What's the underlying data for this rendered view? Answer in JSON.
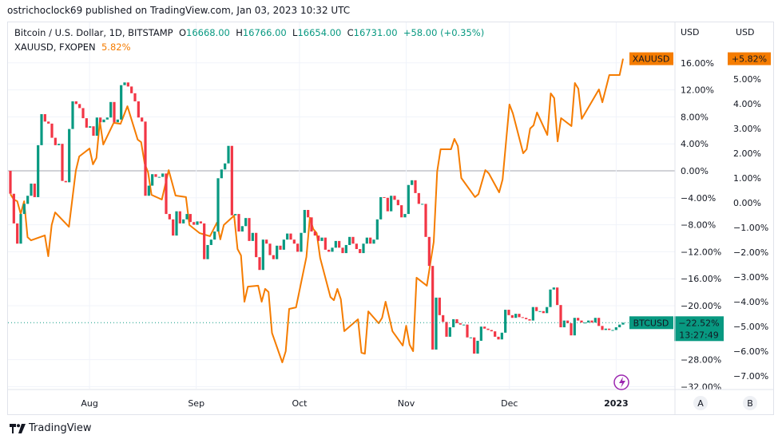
{
  "publisher_line": "ostrichoclock69 published on TradingView.com, Jan 03, 2023 10:32 UTC",
  "legend": {
    "main_symbol": "Bitcoin / U.S. Dollar, 1D, BITSTAMP",
    "o_label": "O",
    "o_value": "16668.00",
    "h_label": "H",
    "h_value": "16766.00",
    "l_label": "L",
    "l_value": "16654.00",
    "c_label": "C",
    "c_value": "16731.00",
    "change": "+58.00 (+0.35%)",
    "compare_symbol": "XAUUSD, FXOPEN",
    "compare_value": "5.82%"
  },
  "footer": {
    "brand": "TradingView",
    "icon": "tradingview-logo-icon"
  },
  "colors": {
    "up": "#089981",
    "down": "#f23645",
    "compare": "#f57c00",
    "btc_label": "#089981",
    "alert": "#9c27b0"
  },
  "chart_data": {
    "type": "candlestick+line",
    "x_range": [
      "2022-07-09",
      "2023-01-03"
    ],
    "x_ticks": [
      {
        "date": "2022-08-01",
        "label": "Aug"
      },
      {
        "date": "2022-09-01",
        "label": "Sep"
      },
      {
        "date": "2022-10-01",
        "label": "Oct"
      },
      {
        "date": "2022-11-01",
        "label": "Nov"
      },
      {
        "date": "2022-12-01",
        "label": "Dec"
      },
      {
        "date": "2023-01-01",
        "label": "2023",
        "bold": true
      }
    ],
    "axis_a": {
      "unit": "USD",
      "name": "A",
      "ticks": [
        16,
        12,
        8,
        4,
        0,
        -4,
        -8,
        -12,
        -16,
        -20,
        -28,
        -32
      ],
      "format": "%"
    },
    "axis_b": {
      "unit": "USD",
      "name": "B",
      "ticks": [
        5,
        4,
        3,
        2,
        1,
        0,
        -1,
        -2,
        -3,
        -4,
        -5,
        -6,
        -7
      ],
      "format": "%"
    },
    "grid": true,
    "series": [
      {
        "name": "BTCUSD",
        "type": "candlestick",
        "axis": "A",
        "first_open": 0,
        "closes": [
          -3.4,
          -7.8,
          -10.8,
          -6.4,
          -4.9,
          -3.7,
          -1.9,
          -3.9,
          3.8,
          8.4,
          7.3,
          7.0,
          4.9,
          3.8,
          4.0,
          -1.5,
          -1.7,
          6.2,
          10.3,
          9.9,
          9.3,
          7.8,
          6.4,
          6.6,
          5.2,
          7.9,
          7.2,
          7.6,
          7.9,
          10.2,
          7.2,
          7.6,
          12.7,
          13.1,
          12.5,
          11.5,
          10.3,
          7.9,
          7.3,
          -3.7,
          -2.2,
          -0.5,
          -0.9,
          -0.9,
          -0.4,
          -6.4,
          -7.2,
          -9.6,
          -6.0,
          -7.8,
          -7.2,
          -6.4,
          -7.6,
          -8.0,
          -7.5,
          -7.8,
          -13.1,
          -11.0,
          -10.2,
          -9.0,
          -1.1,
          0.2,
          1.1,
          3.7,
          -6.6,
          -6.4,
          -9.0,
          -8.2,
          -7.0,
          -10.4,
          -9.2,
          -12.8,
          -14.7,
          -10.2,
          -10.8,
          -12.5,
          -13.1,
          -11.1,
          -11.7,
          -10.2,
          -9.3,
          -10.2,
          -10.8,
          -12.0,
          -9.2,
          -5.8,
          -6.9,
          -9.0,
          -9.6,
          -10.4,
          -9.9,
          -11.7,
          -12.0,
          -11.4,
          -10.4,
          -11.4,
          -12.2,
          -11.0,
          -9.8,
          -10.8,
          -11.6,
          -12.2,
          -10.8,
          -9.9,
          -10.8,
          -10.2,
          -7.2,
          -3.9,
          -4.0,
          -6.0,
          -3.7,
          -4.3,
          -5.1,
          -6.9,
          -6.4,
          -2.1,
          -1.4,
          -3.3,
          -4.9,
          -4.9,
          -9.8,
          -14.1,
          -26.5,
          -18.8,
          -21.4,
          -22.4,
          -24.6,
          -23.2,
          -22.0,
          -22.6,
          -22.8,
          -22.8,
          -24.7,
          -24.7,
          -27.1,
          -25.2,
          -23.1,
          -23.4,
          -23.6,
          -23.8,
          -24.6,
          -25.0,
          -24.0,
          -20.6,
          -21.4,
          -21.8,
          -21.2,
          -21.7,
          -21.8,
          -22.0,
          -22.2,
          -20.2,
          -20.8,
          -20.8,
          -21.1,
          -20.2,
          -17.6,
          -17.3,
          -19.9,
          -23.2,
          -22.2,
          -22.6,
          -24.4,
          -21.8,
          -22.2,
          -22.5,
          -22.5,
          -22.2,
          -22.5,
          -21.8,
          -23.0,
          -23.6,
          -23.4,
          -23.6,
          -23.6,
          -23.2,
          -22.8,
          -22.52
        ],
        "last_label": "BTCUSD",
        "last_value": "−22.52%",
        "countdown": "13:27:49"
      },
      {
        "name": "XAUUSD",
        "type": "line",
        "axis": "B",
        "points": [
          [
            "2022-07-09",
            0.35
          ],
          [
            "2022-07-10",
            0.13
          ],
          [
            "2022-07-11",
            0.06
          ],
          [
            "2022-07-12",
            -0.45
          ],
          [
            "2022-07-13",
            0.06
          ],
          [
            "2022-07-14",
            -1.39
          ],
          [
            "2022-07-15",
            -1.52
          ],
          [
            "2022-07-19",
            -1.32
          ],
          [
            "2022-07-20",
            -2.16
          ],
          [
            "2022-07-21",
            -0.9
          ],
          [
            "2022-07-22",
            -0.39
          ],
          [
            "2022-07-26",
            -0.97
          ],
          [
            "2022-07-28",
            1.29
          ],
          [
            "2022-07-29",
            1.87
          ],
          [
            "2022-08-01",
            2.19
          ],
          [
            "2022-08-02",
            1.55
          ],
          [
            "2022-08-03",
            1.81
          ],
          [
            "2022-08-04",
            3.29
          ],
          [
            "2022-08-05",
            2.35
          ],
          [
            "2022-08-08",
            3.23
          ],
          [
            "2022-08-10",
            3.19
          ],
          [
            "2022-08-12",
            3.9
          ],
          [
            "2022-08-15",
            2.55
          ],
          [
            "2022-08-16",
            2.45
          ],
          [
            "2022-08-17",
            1.58
          ],
          [
            "2022-08-18",
            1.23
          ],
          [
            "2022-08-19",
            0.32
          ],
          [
            "2022-08-22",
            0.13
          ],
          [
            "2022-08-24",
            1.32
          ],
          [
            "2022-08-26",
            0.29
          ],
          [
            "2022-08-29",
            0.23
          ],
          [
            "2022-08-30",
            -0.9
          ],
          [
            "2022-09-02",
            -1.23
          ],
          [
            "2022-09-05",
            -1.35
          ],
          [
            "2022-09-07",
            -0.81
          ],
          [
            "2022-09-08",
            -1.48
          ],
          [
            "2022-09-09",
            -0.9
          ],
          [
            "2022-09-12",
            -0.52
          ],
          [
            "2022-09-13",
            -1.87
          ],
          [
            "2022-09-14",
            -2.13
          ],
          [
            "2022-09-15",
            -4.0
          ],
          [
            "2022-09-16",
            -3.39
          ],
          [
            "2022-09-19",
            -3.35
          ],
          [
            "2022-09-20",
            -4.0
          ],
          [
            "2022-09-21",
            -3.48
          ],
          [
            "2022-09-22",
            -3.61
          ],
          [
            "2022-09-23",
            -5.26
          ],
          [
            "2022-09-26",
            -6.45
          ],
          [
            "2022-09-27",
            -6.0
          ],
          [
            "2022-09-28",
            -4.29
          ],
          [
            "2022-09-30",
            -4.23
          ],
          [
            "2022-10-03",
            -2.19
          ],
          [
            "2022-10-04",
            -0.61
          ],
          [
            "2022-10-05",
            -1.06
          ],
          [
            "2022-10-06",
            -1.23
          ],
          [
            "2022-10-07",
            -2.23
          ],
          [
            "2022-10-10",
            -3.81
          ],
          [
            "2022-10-11",
            -3.94
          ],
          [
            "2022-10-12",
            -3.48
          ],
          [
            "2022-10-13",
            -3.9
          ],
          [
            "2022-10-14",
            -5.19
          ],
          [
            "2022-10-18",
            -4.71
          ],
          [
            "2022-10-19",
            -6.06
          ],
          [
            "2022-10-20",
            -6.1
          ],
          [
            "2022-10-21",
            -4.39
          ],
          [
            "2022-10-24",
            -4.87
          ],
          [
            "2022-10-25",
            -4.65
          ],
          [
            "2022-10-26",
            -4.0
          ],
          [
            "2022-10-28",
            -5.19
          ],
          [
            "2022-10-31",
            -5.77
          ],
          [
            "2022-11-01",
            -4.97
          ],
          [
            "2022-11-02",
            -5.74
          ],
          [
            "2022-11-03",
            -6.0
          ],
          [
            "2022-11-04",
            -3.03
          ],
          [
            "2022-11-07",
            -3.35
          ],
          [
            "2022-11-09",
            -1.58
          ],
          [
            "2022-11-10",
            1.26
          ],
          [
            "2022-11-11",
            2.16
          ],
          [
            "2022-11-14",
            2.16
          ],
          [
            "2022-11-15",
            2.58
          ],
          [
            "2022-11-16",
            2.29
          ],
          [
            "2022-11-17",
            1.0
          ],
          [
            "2022-11-21",
            0.23
          ],
          [
            "2022-11-22",
            0.35
          ],
          [
            "2022-11-24",
            1.32
          ],
          [
            "2022-11-25",
            1.19
          ],
          [
            "2022-11-28",
            0.42
          ],
          [
            "2022-11-29",
            0.94
          ],
          [
            "2022-12-01",
            3.97
          ],
          [
            "2022-12-02",
            3.61
          ],
          [
            "2022-12-05",
            2.0
          ],
          [
            "2022-12-06",
            2.16
          ],
          [
            "2022-12-07",
            3.0
          ],
          [
            "2022-12-08",
            3.13
          ],
          [
            "2022-12-09",
            3.65
          ],
          [
            "2022-12-12",
            2.74
          ],
          [
            "2022-12-13",
            4.42
          ],
          [
            "2022-12-14",
            4.23
          ],
          [
            "2022-12-15",
            2.48
          ],
          [
            "2022-12-16",
            3.42
          ],
          [
            "2022-12-19",
            3.1
          ],
          [
            "2022-12-20",
            4.84
          ],
          [
            "2022-12-21",
            4.61
          ],
          [
            "2022-12-22",
            3.39
          ],
          [
            "2022-12-27",
            4.58
          ],
          [
            "2022-12-28",
            4.06
          ],
          [
            "2022-12-30",
            5.16
          ],
          [
            "2023-01-02",
            5.16
          ],
          [
            "2023-01-03",
            5.82
          ]
        ],
        "last_label": "XAUUSD",
        "last_value": "+5.82%"
      }
    ]
  }
}
